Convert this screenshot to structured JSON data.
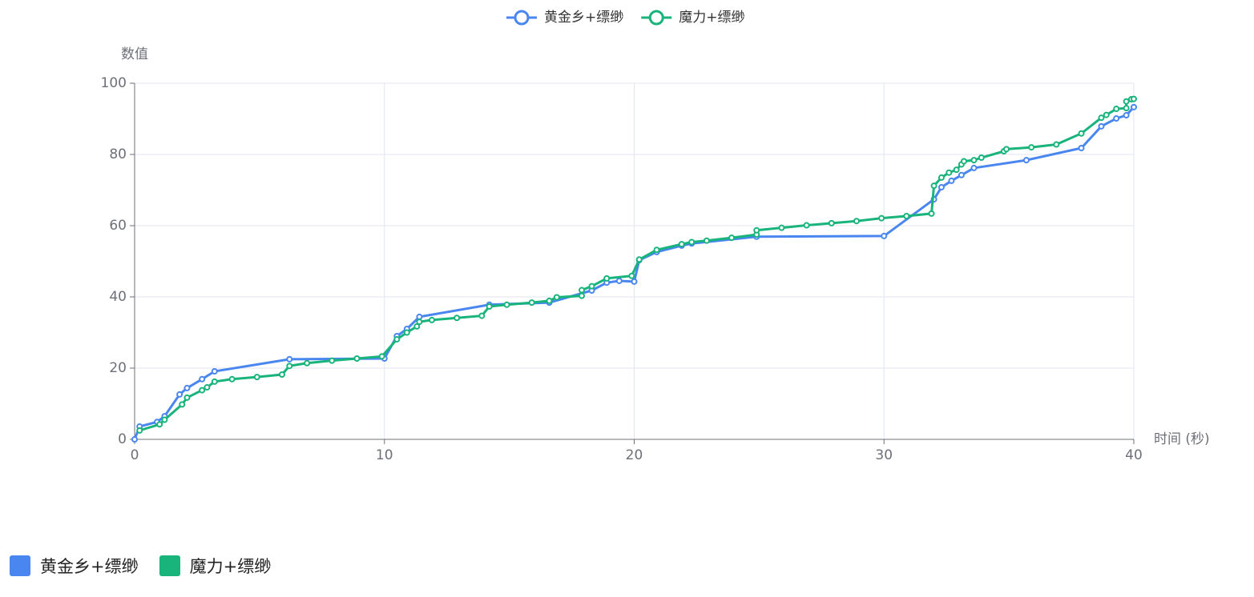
{
  "chart_data": {
    "type": "line",
    "xlabel": "时间 (秒)",
    "ylabel": "数值",
    "xlim": [
      0,
      40
    ],
    "xticks": [
      0,
      10,
      20,
      30,
      40
    ],
    "ylim": [
      0,
      100
    ],
    "yticks": [
      0,
      20,
      40,
      60,
      80,
      100
    ],
    "grid": true,
    "series": [
      {
        "name": "黄金乡+缥缈",
        "color": "#4a86f0",
        "x": [
          0,
          0.2,
          0.9,
          1.2,
          1.8,
          2.1,
          2.7,
          3.2,
          6.2,
          10,
          10.5,
          10.9,
          11.4,
          14.2,
          16.6,
          18.3,
          18.9,
          19.4,
          20,
          20.2,
          20.9,
          21.9,
          22.3,
          24.9,
          30,
          32,
          32.3,
          32.7,
          33.1,
          33.6,
          35.7,
          37.9,
          38.7,
          39.3,
          39.7,
          40
        ],
        "values": [
          0,
          3.6,
          4.9,
          6.5,
          12.6,
          14.4,
          16.9,
          19.1,
          22.5,
          22.7,
          29.0,
          31.0,
          34.4,
          37.8,
          38.4,
          41.8,
          44,
          44.5,
          44.3,
          50.3,
          52.6,
          54.4,
          55,
          56.9,
          57.1,
          67.4,
          70.8,
          72.6,
          74.2,
          76.2,
          78.4,
          81.8,
          87.9,
          90.1,
          91,
          93.3
        ]
      },
      {
        "name": "魔力+缥缈",
        "color": "#18b47b",
        "x": [
          0.2,
          1,
          1.2,
          1.9,
          2.1,
          2.7,
          2.9,
          3.2,
          3.9,
          4.9,
          5.9,
          6.2,
          6.9,
          7.9,
          8.9,
          9.9,
          10.5,
          10.9,
          11.3,
          11.4,
          11.9,
          12.9,
          13.9,
          14.2,
          14.9,
          15.9,
          16.6,
          16.9,
          17.9,
          17.9,
          18.3,
          18.9,
          19.9,
          20.2,
          20.9,
          21.9,
          22.3,
          22.9,
          23.9,
          24.9,
          24.9,
          25.9,
          26.9,
          27.9,
          28.9,
          29.9,
          30.9,
          31.9,
          32,
          32.3,
          32.6,
          32.9,
          33.1,
          33.2,
          33.6,
          33.9,
          34.8,
          34.9,
          35.9,
          36.9,
          37.9,
          38.7,
          38.9,
          39.3,
          39.7,
          39.7,
          39.9,
          40
        ],
        "values": [
          2.5,
          4.2,
          5.5,
          9.8,
          11.7,
          13.8,
          14.6,
          16.2,
          16.9,
          17.5,
          18.2,
          20.6,
          21.4,
          22.1,
          22.7,
          23.3,
          28.1,
          30.0,
          31.7,
          33.0,
          33.5,
          34.1,
          34.7,
          37.3,
          37.8,
          38.4,
          38.9,
          39.9,
          40.3,
          41.9,
          43.0,
          45.2,
          45.9,
          50.5,
          53.2,
          54.8,
          55.4,
          55.8,
          56.6,
          57.5,
          58.7,
          59.4,
          60.1,
          60.7,
          61.3,
          62.1,
          62.7,
          63.4,
          71.2,
          73.5,
          74.9,
          75.7,
          77.2,
          78.1,
          78.4,
          79.1,
          80.9,
          81.5,
          82.0,
          82.8,
          85.9,
          90.3,
          91.1,
          92.8,
          93.0,
          94.9,
          95.5,
          95.6
        ]
      }
    ]
  }
}
